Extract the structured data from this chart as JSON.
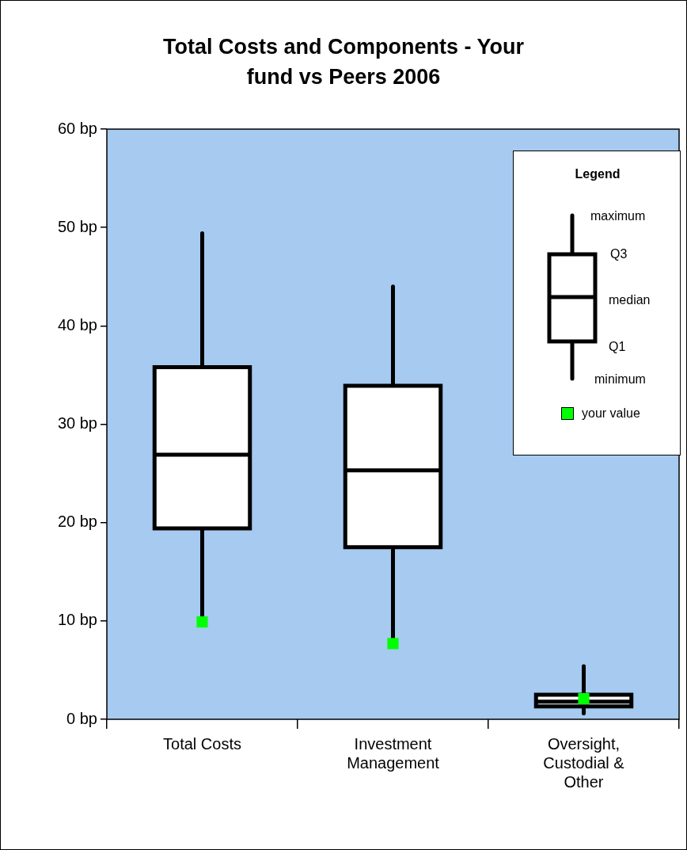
{
  "chart_data": {
    "type": "box",
    "title": "Total Costs and Components - Your fund vs Peers 2006",
    "categories": [
      "Total Costs",
      "Investment Management",
      "Oversight, Custodial & Other"
    ],
    "boxes": [
      {
        "low": 9.9,
        "q1": 19.4,
        "median": 26.9,
        "q3": 35.8,
        "high": 49.4
      },
      {
        "low": 7.7,
        "q1": 17.5,
        "median": 25.3,
        "q3": 33.9,
        "high": 44.0
      },
      {
        "low": 0.6,
        "q1": 1.3,
        "median": 1.8,
        "q3": 2.5,
        "high": 5.4
      }
    ],
    "series": [
      {
        "name": "your value",
        "type": "scatter",
        "color": "#00ff00",
        "values": [
          9.9,
          7.7,
          2.1
        ]
      }
    ],
    "ylim": [
      0,
      60
    ],
    "yticks": [
      {
        "value": 0,
        "label": "0 bp"
      },
      {
        "value": 10,
        "label": "10 bp"
      },
      {
        "value": 20,
        "label": "20 bp"
      },
      {
        "value": 30,
        "label": "30 bp"
      },
      {
        "value": 40,
        "label": "40 bp"
      },
      {
        "value": 50,
        "label": "50 bp"
      },
      {
        "value": 60,
        "label": "60 bp"
      }
    ],
    "legend": "top right",
    "legend_title": "Legend",
    "annotations": [
      "maximum",
      "Q3",
      "median",
      "Q1",
      "minimum"
    ],
    "marker": "square"
  }
}
